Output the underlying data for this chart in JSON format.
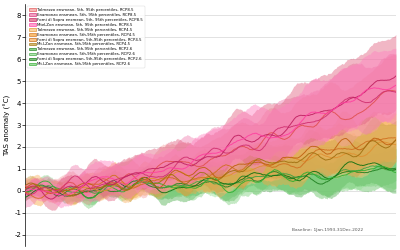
{
  "ylabel": "TAS anomaly (°C)",
  "baseline_text": "Baseline: 1Jan.1993-31Dec.2022",
  "xlim": [
    0,
    479
  ],
  "ylim": [
    -2.5,
    8.5
  ],
  "yticks": [
    -2,
    -1,
    0,
    1,
    2,
    3,
    4,
    5,
    6,
    7,
    8
  ],
  "n_points": 480,
  "rcp85": {
    "finals": [
      4.5,
      4.8,
      5.2,
      5.0
    ],
    "fills": [
      "#f4a0a0",
      "#f080b0",
      "#e06080",
      "#ff80c0"
    ],
    "lines": [
      "#e05050",
      "#d03070",
      "#c02060",
      "#ff40a0"
    ],
    "spread_lo": [
      1.2,
      1.3,
      1.4,
      1.3
    ],
    "spread_hi": [
      1.5,
      1.6,
      1.8,
      1.7
    ]
  },
  "rcp45": {
    "finals": [
      2.2,
      2.4,
      2.6,
      2.3
    ],
    "fills": [
      "#f8c880",
      "#f8a840",
      "#f8b060",
      "#c8a040"
    ],
    "lines": [
      "#e09030",
      "#d07020",
      "#c06010",
      "#a07010"
    ],
    "spread_lo": [
      0.9,
      1.0,
      1.1,
      0.9
    ],
    "spread_hi": [
      1.0,
      1.1,
      1.2,
      1.0
    ]
  },
  "rcp26": {
    "finals": [
      1.0,
      1.1,
      1.2,
      1.0
    ],
    "fills": [
      "#60c060",
      "#90e090",
      "#50b050",
      "#80d080"
    ],
    "lines": [
      "#208020",
      "#40a040",
      "#107010",
      "#30b030"
    ],
    "spread_lo": [
      0.7,
      0.8,
      0.9,
      0.7
    ],
    "spread_hi": [
      0.8,
      0.9,
      1.0,
      0.8
    ]
  },
  "legend_entries": [
    "Tolmezzo ensmean, 5th, 95th percentiles, RCP8.5",
    "Enamonzo ensmean, 5th, 95th percentiles, RCP8.5",
    "Forni di Sopra ensmean, 5th, 95th percentiles, RCP8.5",
    "MteLZon ensmean, 5th, 95th percentiles, RCP8.5",
    "Tolmezzo ensmean, 5th,95th percentiles, RCP4.5",
    "Enamonzo ensmean, 5th,95th percentiles, RCP4.5",
    "Forni di Sopra ensmean, 5th,95th percentiles, RCP4.5",
    "Mt.LZon ensmean, 5th,95th percentiles, RCP4.5",
    "Tolmezzo ensmean, 5th,95th percentiles, RCP2.6",
    "Enamonzo ensmean, 5th,95th percentiles, RCP2.6",
    "Forni di Sopra ensmean, 5th,95th percentiles, RCP2.6",
    "Mt.LZon ensmean, 5th,95th percentiles, RCP2.6"
  ]
}
